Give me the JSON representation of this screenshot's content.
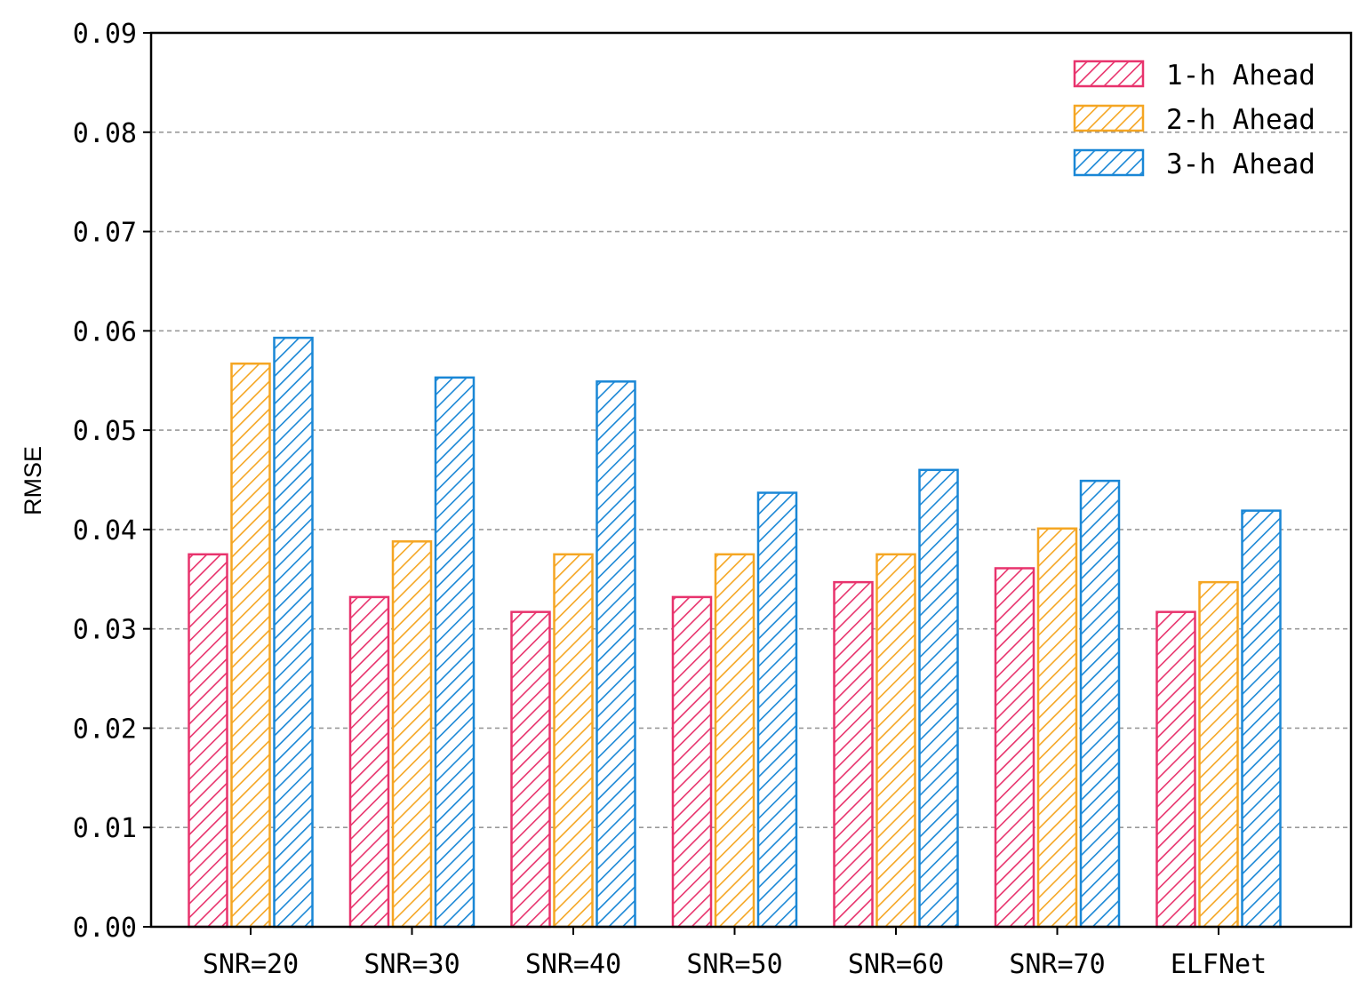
{
  "chart_data": {
    "type": "bar",
    "title": "",
    "xlabel": "",
    "ylabel": "RMSE",
    "ylim": [
      0,
      0.09
    ],
    "yticks": [
      "0.00",
      "0.01",
      "0.02",
      "0.03",
      "0.04",
      "0.05",
      "0.06",
      "0.07",
      "0.08",
      "0.09"
    ],
    "categories": [
      "SNR=20",
      "SNR=30",
      "SNR=40",
      "SNR=50",
      "SNR=60",
      "SNR=70",
      "ELFNet"
    ],
    "grid": "horizontal-dashed",
    "legend_position": "top-right",
    "bar_pattern": "diagonal-hatch",
    "series": [
      {
        "name": "1-h Ahead",
        "color": "#e8336d",
        "values": [
          0.0375,
          0.0332,
          0.0317,
          0.0332,
          0.0347,
          0.0361,
          0.0317
        ]
      },
      {
        "name": "2-h Ahead",
        "color": "#f5a623",
        "values": [
          0.0567,
          0.0388,
          0.0375,
          0.0375,
          0.0375,
          0.0401,
          0.0347
        ]
      },
      {
        "name": "3-h Ahead",
        "color": "#1a87d6",
        "values": [
          0.0593,
          0.0553,
          0.0549,
          0.0437,
          0.046,
          0.0449,
          0.0419
        ]
      }
    ]
  }
}
